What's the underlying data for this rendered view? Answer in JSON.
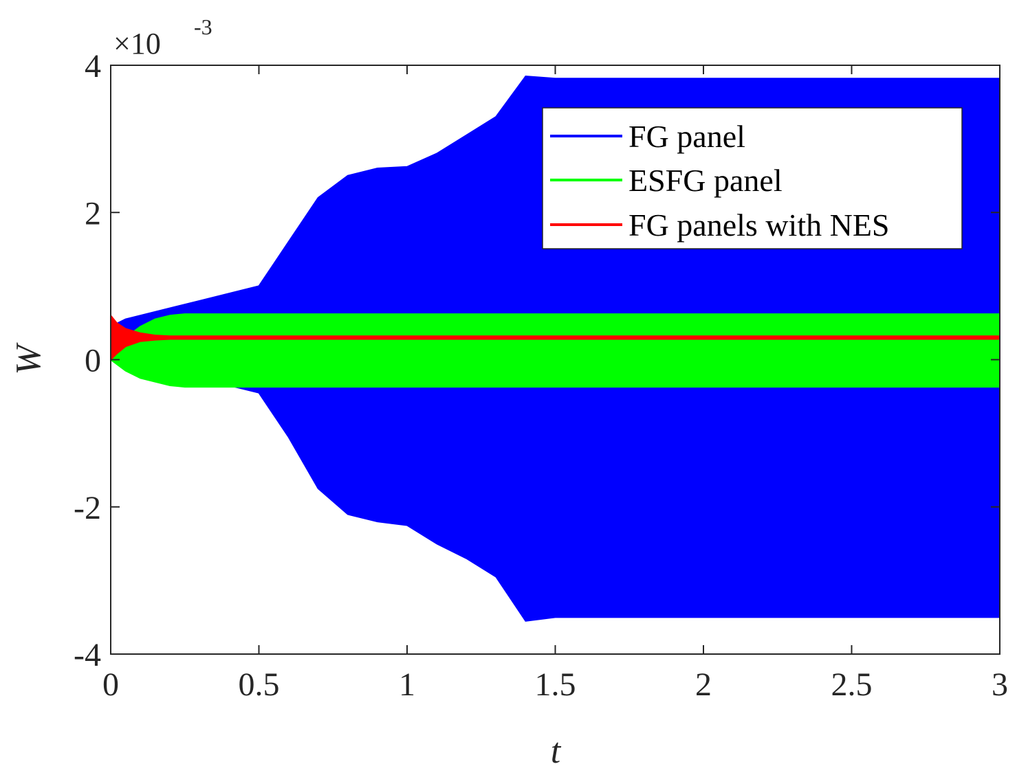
{
  "chart_data": {
    "type": "area",
    "title": "",
    "xlabel": "t",
    "ylabel": "W",
    "y_scale_factor": "×10-3",
    "y_scale_base": "×10",
    "y_scale_exponent": "-3",
    "xlim": [
      0,
      3
    ],
    "ylim": [
      -4,
      4
    ],
    "x_ticks": [
      0,
      0.5,
      1,
      1.5,
      2,
      2.5,
      3
    ],
    "x_tick_labels": [
      "0",
      "0.5",
      "1",
      "1.5",
      "2",
      "2.5",
      "3"
    ],
    "y_ticks": [
      -4,
      -2,
      0,
      2,
      4
    ],
    "y_tick_labels": [
      "-4",
      "-2",
      "0",
      "2",
      "4"
    ],
    "grid": false,
    "legend_position": "top-right",
    "series": [
      {
        "name": "FG panel",
        "color": "#0000ff",
        "x": [
          0,
          0.05,
          0.1,
          0.2,
          0.3,
          0.4,
          0.5,
          0.6,
          0.7,
          0.8,
          0.9,
          1.0,
          1.1,
          1.2,
          1.3,
          1.4,
          1.5,
          2.0,
          2.5,
          3.0
        ],
        "upper": [
          0.45,
          0.55,
          0.6,
          0.7,
          0.8,
          0.9,
          1.0,
          1.6,
          2.2,
          2.5,
          2.6,
          2.62,
          2.8,
          3.05,
          3.3,
          3.85,
          3.82,
          3.82,
          3.82,
          3.82
        ],
        "lower": [
          0.1,
          -0.05,
          -0.15,
          -0.25,
          -0.3,
          -0.35,
          -0.45,
          -1.05,
          -1.75,
          -2.1,
          -2.2,
          -2.25,
          -2.5,
          -2.7,
          -2.95,
          -3.55,
          -3.5,
          -3.5,
          -3.5,
          -3.5
        ]
      },
      {
        "name": "ESFG panel",
        "color": "#00ff00",
        "x": [
          0,
          0.05,
          0.1,
          0.15,
          0.2,
          0.25,
          3.0
        ],
        "upper": [
          0.05,
          0.3,
          0.45,
          0.55,
          0.6,
          0.62,
          0.62
        ],
        "lower": [
          0.0,
          -0.15,
          -0.25,
          -0.3,
          -0.35,
          -0.37,
          -0.37
        ]
      },
      {
        "name": "FG panels with NES",
        "color": "#ff0000",
        "x": [
          0,
          0.02,
          0.05,
          0.1,
          0.15,
          0.2,
          3.0
        ],
        "upper": [
          0.6,
          0.5,
          0.42,
          0.36,
          0.33,
          0.32,
          0.32
        ],
        "lower": [
          0.0,
          0.08,
          0.18,
          0.25,
          0.27,
          0.28,
          0.28
        ]
      }
    ]
  }
}
